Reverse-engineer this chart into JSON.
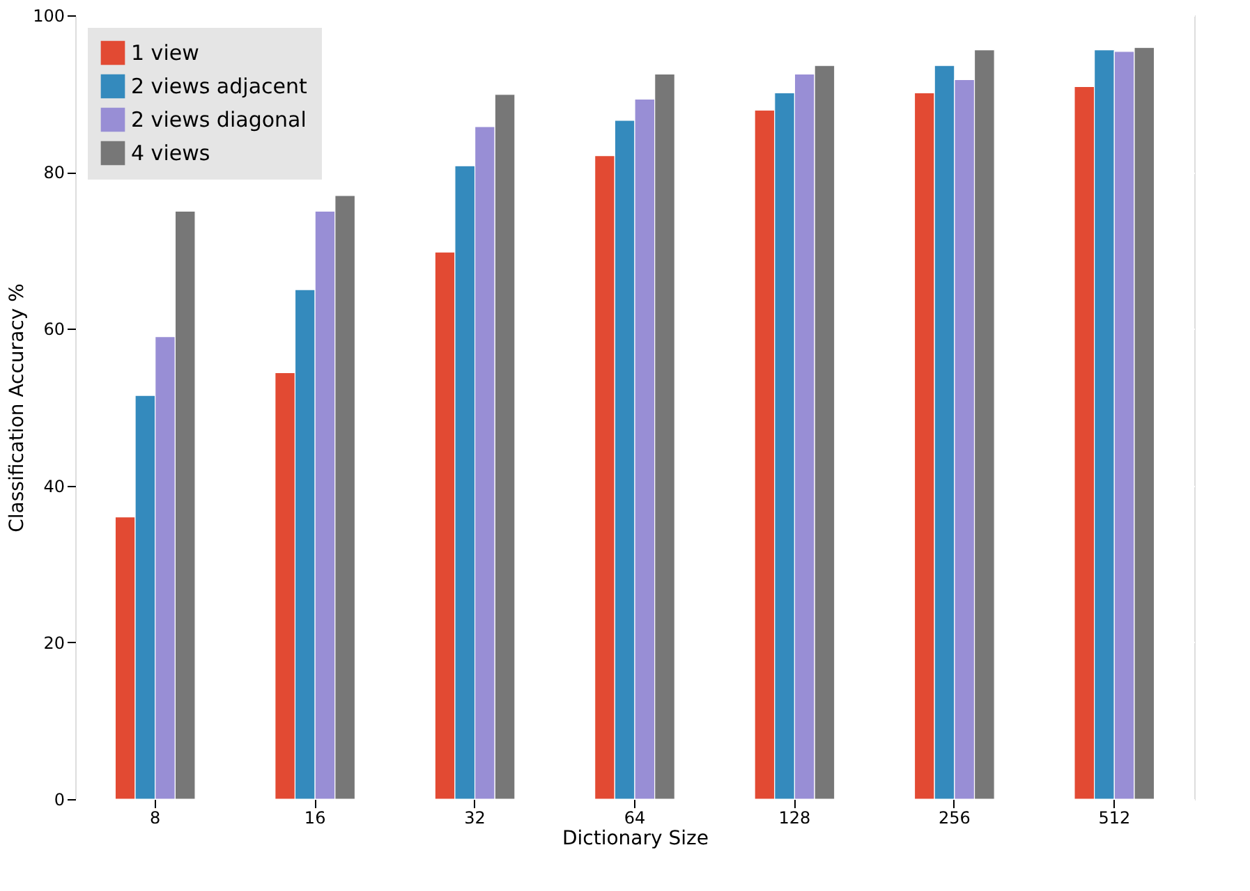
{
  "chart_data": {
    "type": "bar",
    "xlabel": "Dictionary Size",
    "ylabel": "Classification Accuracy %",
    "categories": [
      "8",
      "16",
      "32",
      "64",
      "128",
      "256",
      "512"
    ],
    "series": [
      {
        "name": "1 view",
        "color": "#e24a33",
        "values": [
          36,
          54.4,
          69.8,
          82.1,
          87.9,
          90.1,
          90.9
        ]
      },
      {
        "name": "2 views adjacent",
        "color": "#348abd",
        "values": [
          51.5,
          65,
          80.8,
          86.6,
          90.1,
          93.6,
          95.6
        ]
      },
      {
        "name": "2 views diagonal",
        "color": "#988ed5",
        "values": [
          59,
          75,
          85.8,
          89.3,
          92.5,
          91.8,
          95.4
        ]
      },
      {
        "name": "4 views",
        "color": "#777777",
        "values": [
          75,
          77,
          89.9,
          92.5,
          93.6,
          95.6,
          95.9
        ]
      }
    ],
    "ylim": [
      0,
      100
    ],
    "yticks": [
      0,
      20,
      40,
      60,
      80,
      100
    ],
    "grid": true,
    "legend": "top left"
  }
}
